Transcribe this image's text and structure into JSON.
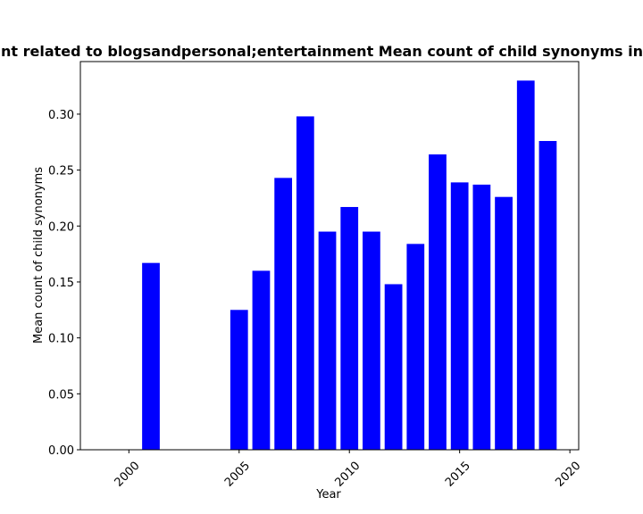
{
  "chart_data": {
    "type": "bar",
    "title": "nt related to blogsandpersonal;entertainment Mean count of child synonyms in p",
    "xlabel": "Year",
    "ylabel": "Mean count of child synonyms",
    "x": [
      2001,
      2005,
      2006,
      2007,
      2008,
      2009,
      2010,
      2011,
      2012,
      2013,
      2014,
      2015,
      2016,
      2017,
      2018,
      2019
    ],
    "values": [
      0.167,
      0.125,
      0.16,
      0.243,
      0.298,
      0.195,
      0.217,
      0.195,
      0.148,
      0.184,
      0.264,
      0.239,
      0.237,
      0.226,
      0.33,
      0.276
    ],
    "xlim": [
      1997.8,
      2020.4
    ],
    "ylim": [
      0,
      0.347
    ],
    "xticks": [
      2000,
      2005,
      2010,
      2015,
      2020
    ],
    "xtick_labels": [
      "2000",
      "2005",
      "2010",
      "2015",
      "2020"
    ],
    "yticks": [
      0.0,
      0.05,
      0.1,
      0.15,
      0.2,
      0.25,
      0.3
    ],
    "ytick_labels": [
      "0.00",
      "0.05",
      "0.10",
      "0.15",
      "0.20",
      "0.25",
      "0.30"
    ],
    "bar_color": "#0000ff",
    "grid": false,
    "legend": false
  }
}
